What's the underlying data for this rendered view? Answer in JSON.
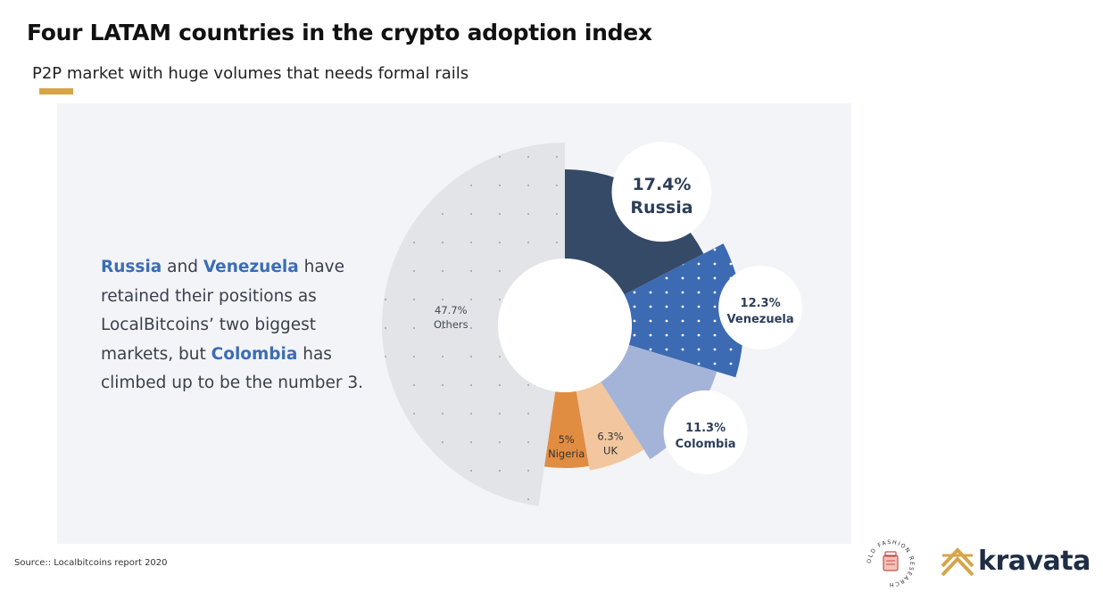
{
  "title": "Four LATAM countries in the crypto adoption index",
  "subtitle": "P2P market with huge volumes that needs formal rails",
  "blurb": {
    "hl1": "Russia",
    "t1": " and ",
    "hl2": "Venezuela",
    "t2": " have retained their positions as LocalBitcoins’ two biggest markets, but ",
    "hl3": "Colombia",
    "t3": " has climbed up to be the number 3."
  },
  "source": "Source:: Localbitcoins report 2020",
  "brand": {
    "name": "kravata",
    "secondary_logo_text": "OLD FASHION RESEARCH"
  },
  "colors": {
    "accent": "#d6a54a",
    "highlight_text": "#3b6db5",
    "brand_text": "#1f2d45"
  },
  "chart_data": {
    "type": "pie",
    "style": "donut",
    "slices": [
      {
        "label": "Russia",
        "value_label": "17.4%",
        "value": 17.4,
        "color": "#344a66",
        "pattern": "none",
        "callout": "bubble-large"
      },
      {
        "label": "Venezuela",
        "value_label": "12.3%",
        "value": 12.3,
        "color": "#3c6ab3",
        "pattern": "dots",
        "callout": "bubble"
      },
      {
        "label": "Colombia",
        "value_label": "11.3%",
        "value": 11.3,
        "color": "#a4b4d8",
        "pattern": "none",
        "callout": "bubble"
      },
      {
        "label": "UK",
        "value_label": "6.3%",
        "value": 6.3,
        "color": "#f2c79f",
        "pattern": "none",
        "callout": "inside"
      },
      {
        "label": "Nigeria",
        "value_label": "5%",
        "value": 5,
        "color": "#e08d42",
        "pattern": "none",
        "callout": "inside"
      },
      {
        "label": "Others",
        "value_label": "47.7%",
        "value": 47.7,
        "color": "#e3e4e8",
        "pattern": "dots",
        "callout": "inside"
      }
    ],
    "legend": "none"
  }
}
